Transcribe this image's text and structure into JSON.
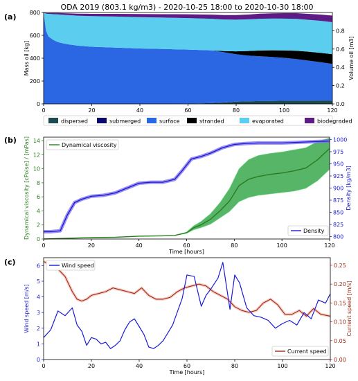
{
  "figure_title": "ODA 2019 (803.1 kg/m3) - 2020-10-25 18:00 to 2020-10-30 18:00",
  "chart_data": [
    {
      "panel": "(a)",
      "type": "area",
      "x_ticks": [
        0,
        20,
        40,
        60,
        80,
        100,
        120
      ],
      "xlim": [
        0,
        120
      ],
      "ylabel": "Mass oil  [kg]",
      "ylim": [
        0,
        800
      ],
      "y_ticks": [
        0,
        200,
        400,
        600,
        800
      ],
      "ylabel_right": "Volume oil [m3]",
      "ylim_right": [
        0,
        1.0
      ],
      "y_ticks_right": [
        0.0,
        0.2,
        0.4,
        0.6,
        0.8
      ],
      "x": [
        0,
        1,
        2,
        4,
        6,
        8,
        10,
        14,
        20,
        30,
        40,
        50,
        60,
        70,
        75,
        80,
        85,
        90,
        95,
        100,
        105,
        110,
        115,
        120
      ],
      "series": [
        {
          "name": "dispersed",
          "color": "#1d4a4f",
          "values": [
            0,
            0,
            0,
            0,
            0,
            0,
            0,
            0,
            0,
            0,
            0,
            0,
            2,
            8,
            12,
            20,
            23,
            25,
            26,
            28,
            28,
            29,
            30,
            30
          ]
        },
        {
          "name": "submerged",
          "color": "#0b0b6e",
          "values": [
            0,
            0,
            0,
            0,
            0,
            0,
            0,
            0,
            0,
            0,
            0,
            0,
            0,
            0,
            0,
            0,
            0,
            0,
            0,
            0,
            0,
            0,
            0,
            0
          ]
        },
        {
          "name": "surface",
          "color": "#2b66e3",
          "values": [
            800,
            640,
            590,
            560,
            540,
            530,
            522,
            510,
            500,
            492,
            485,
            480,
            473,
            460,
            440,
            415,
            400,
            392,
            385,
            375,
            365,
            350,
            335,
            320
          ]
        },
        {
          "name": "stranded",
          "color": "#000000",
          "values": [
            0,
            0,
            0,
            0,
            0,
            0,
            0,
            0,
            0,
            0,
            0,
            0,
            0,
            0,
            10,
            25,
            40,
            50,
            58,
            65,
            72,
            78,
            82,
            85
          ]
        },
        {
          "name": "evaporated",
          "color": "#5bcdef",
          "values": [
            0,
            150,
            198,
            225,
            243,
            250,
            255,
            262,
            268,
            272,
            274,
            275,
            276,
            277,
            277,
            277,
            277,
            278,
            278,
            278,
            279,
            279,
            280,
            280
          ]
        },
        {
          "name": "biodegraded",
          "color": "#5e1a85",
          "values": [
            0,
            5,
            8,
            10,
            12,
            14,
            15,
            18,
            20,
            24,
            27,
            30,
            33,
            36,
            38,
            40,
            42,
            44,
            46,
            48,
            50,
            52,
            55,
            58
          ]
        }
      ]
    },
    {
      "panel": "(b)",
      "type": "line",
      "xlabel": "Time [hours]",
      "x_ticks": [
        0,
        20,
        40,
        60,
        80,
        100,
        120
      ],
      "xlim": [
        0,
        120
      ],
      "ylabel": "Dynamical viscosity  [cPoise] / [mPas]",
      "ylim": [
        0,
        14.5
      ],
      "y_ticks": [
        0,
        2,
        4,
        6,
        8,
        10,
        12,
        14
      ],
      "ylabel_right": "Density  [kg/m3]",
      "ylim_right": [
        795,
        1005
      ],
      "y_ticks_right": [
        800,
        825,
        850,
        875,
        900,
        925,
        950,
        975,
        1000
      ],
      "series": [
        {
          "name": "Dynamical viscosity",
          "axis": "left",
          "color": "#2a7d1e",
          "band_color": "#3aa84e",
          "x": [
            0,
            10,
            20,
            30,
            40,
            50,
            55,
            60,
            63,
            66,
            70,
            74,
            78,
            82,
            86,
            90,
            95,
            100,
            105,
            110,
            115,
            120
          ],
          "values": [
            0.0,
            0.1,
            0.2,
            0.25,
            0.4,
            0.45,
            0.5,
            0.9,
            1.6,
            2.0,
            2.8,
            4.0,
            5.4,
            7.6,
            8.5,
            8.9,
            9.2,
            9.4,
            9.7,
            10.1,
            11.3,
            12.9
          ],
          "band_lower": [
            0.0,
            0.1,
            0.2,
            0.25,
            0.4,
            0.45,
            0.5,
            0.8,
            1.3,
            1.6,
            2.1,
            3.0,
            3.9,
            5.3,
            5.9,
            6.2,
            6.4,
            6.6,
            6.8,
            7.2,
            8.3,
            9.9
          ],
          "band_upper": [
            0.0,
            0.1,
            0.2,
            0.25,
            0.4,
            0.45,
            0.5,
            1.0,
            1.9,
            2.5,
            3.6,
            5.2,
            7.2,
            10.0,
            11.3,
            11.9,
            12.2,
            12.4,
            12.7,
            13.0,
            13.9,
            14.4
          ]
        },
        {
          "name": "Density",
          "axis": "right",
          "color": "#1a1ad4",
          "band_color": "#7b6ee8",
          "x": [
            0,
            3,
            7,
            10,
            13,
            16,
            20,
            25,
            30,
            35,
            40,
            45,
            50,
            55,
            58,
            62,
            66,
            70,
            75,
            80,
            85,
            90,
            100,
            110,
            120
          ],
          "values": [
            810,
            810,
            812,
            845,
            870,
            877,
            883,
            885,
            890,
            900,
            910,
            912,
            912,
            918,
            935,
            960,
            965,
            972,
            983,
            990,
            992,
            993,
            993,
            995,
            997
          ]
        }
      ]
    },
    {
      "panel": "(c)",
      "type": "line",
      "xlabel": "Time  [hours]",
      "x_ticks": [
        0,
        20,
        40,
        60,
        80,
        100,
        120
      ],
      "xlim": [
        0,
        120
      ],
      "ylabel": "Wind speed  [m/s]",
      "ylim": [
        0,
        6.5
      ],
      "y_ticks": [
        0,
        1,
        2,
        3,
        4,
        5,
        6
      ],
      "ylabel_right": "Current speed  [m/s]",
      "ylim_right": [
        0,
        0.27
      ],
      "y_ticks_right": [
        0.0,
        0.05,
        0.1,
        0.15,
        0.2,
        0.25
      ],
      "series": [
        {
          "name": "Wind speed",
          "axis": "left",
          "color": "#1a1ad4",
          "x": [
            0,
            3,
            6,
            9,
            12,
            14,
            16,
            18,
            20,
            22,
            24,
            26,
            28,
            30,
            32,
            34,
            36,
            38,
            40,
            42,
            44,
            46,
            48,
            50,
            54,
            58,
            60,
            63,
            66,
            68,
            70,
            73,
            75,
            78,
            80,
            82,
            85,
            88,
            91,
            94,
            97,
            100,
            103,
            106,
            109,
            112,
            115,
            118,
            120
          ],
          "values": [
            1.4,
            1.9,
            3.1,
            2.8,
            3.3,
            2.2,
            1.8,
            0.9,
            1.4,
            1.3,
            1.0,
            1.1,
            0.7,
            0.9,
            1.2,
            1.9,
            2.4,
            2.6,
            2.1,
            1.6,
            0.8,
            0.7,
            0.9,
            1.2,
            2.2,
            3.9,
            5.4,
            5.3,
            3.4,
            4.1,
            4.5,
            5.2,
            6.2,
            3.2,
            5.4,
            4.9,
            3.3,
            2.8,
            2.7,
            2.5,
            2.0,
            2.3,
            2.5,
            2.2,
            3.0,
            2.6,
            3.8,
            3.6,
            4.2
          ]
        },
        {
          "name": "Current speed",
          "axis": "right",
          "color": "#9b2a12",
          "x": [
            0,
            3,
            6,
            9,
            12,
            14,
            16,
            18,
            20,
            23,
            26,
            29,
            32,
            35,
            38,
            41,
            44,
            47,
            50,
            53,
            56,
            59,
            62,
            65,
            68,
            71,
            74,
            77,
            80,
            83,
            86,
            89,
            92,
            95,
            98,
            101,
            104,
            107,
            110,
            113,
            116,
            120
          ],
          "values": [
            0.26,
            0.25,
            0.24,
            0.22,
            0.18,
            0.16,
            0.155,
            0.16,
            0.17,
            0.175,
            0.18,
            0.19,
            0.185,
            0.18,
            0.175,
            0.19,
            0.17,
            0.16,
            0.16,
            0.165,
            0.18,
            0.19,
            0.195,
            0.2,
            0.195,
            0.18,
            0.17,
            0.16,
            0.14,
            0.13,
            0.125,
            0.13,
            0.15,
            0.16,
            0.145,
            0.12,
            0.12,
            0.13,
            0.115,
            0.135,
            0.12,
            0.115
          ]
        }
      ]
    }
  ]
}
